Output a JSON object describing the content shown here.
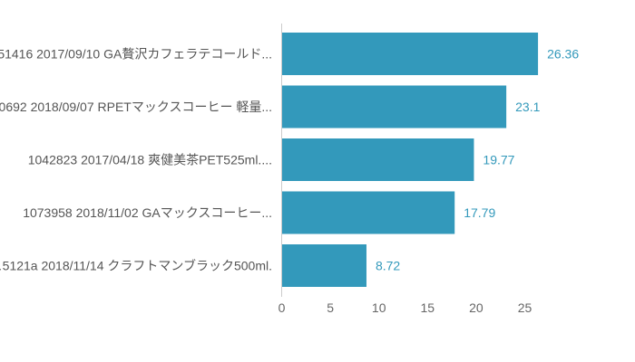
{
  "chart_data": {
    "type": "bar",
    "orientation": "horizontal",
    "categories": [
      "…51416 2017/09/10 GA贅沢カフェラテコールド...",
      "…0692 2018/09/07 RPETマックスコーヒー 軽量...",
      "1042823 2017/04/18 爽健美茶PET525ml....",
      "1073958 2018/11/02 GAマックスコーヒー...",
      "…5121a 2018/11/14 クラフトマンブラック500ml."
    ],
    "values": [
      26.36,
      23.1,
      19.77,
      17.79,
      8.72
    ],
    "value_labels": [
      "26.36",
      "23.1",
      "19.77",
      "17.79",
      "8.72"
    ],
    "xlim": [
      0,
      30
    ],
    "xticks": [
      "0",
      "5",
      "10",
      "15",
      "20",
      "25"
    ],
    "xtick_values": [
      0,
      5,
      10,
      15,
      20,
      25
    ],
    "grid": false,
    "legend": "none",
    "colors": {
      "bar": "#3399bb",
      "value_label": "#3399bb",
      "axis": "#cccccc",
      "category_label": "#555555",
      "tick_label": "#666666"
    }
  }
}
